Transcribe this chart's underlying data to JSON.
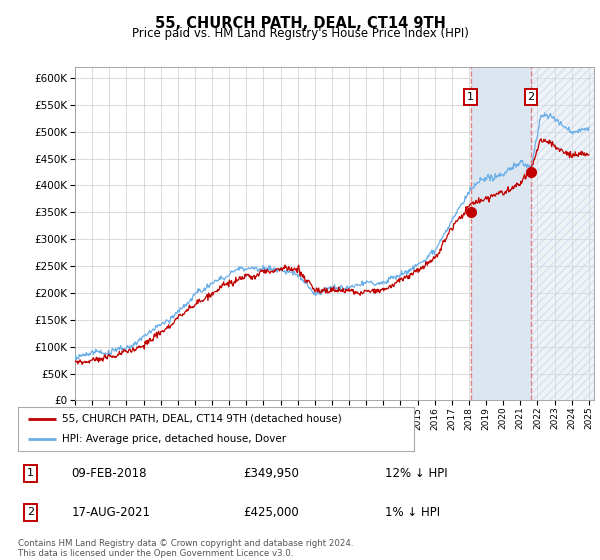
{
  "title": "55, CHURCH PATH, DEAL, CT14 9TH",
  "subtitle": "Price paid vs. HM Land Registry's House Price Index (HPI)",
  "ylim": [
    0,
    620000
  ],
  "ytick_vals": [
    0,
    50000,
    100000,
    150000,
    200000,
    250000,
    300000,
    350000,
    400000,
    450000,
    500000,
    550000,
    600000
  ],
  "xstart_year": 1995,
  "xend_year": 2025,
  "sale1_date": 2018.1,
  "sale1_price": 349950,
  "sale1_date_str": "09-FEB-2018",
  "sale1_hpi_pct": "12% ↓ HPI",
  "sale2_date": 2021.62,
  "sale2_price": 425000,
  "sale2_date_str": "17-AUG-2021",
  "sale2_hpi_pct": "1% ↓ HPI",
  "hpi_line_color": "#6aaee8",
  "price_line_color": "#c00000",
  "vline_color": "#e08080",
  "shade_color": "#dce6f1",
  "grid_color": "#cccccc",
  "background_color": "#ffffff",
  "legend_label1": "55, CHURCH PATH, DEAL, CT14 9TH (detached house)",
  "legend_label2": "HPI: Average price, detached house, Dover",
  "footer": "Contains HM Land Registry data © Crown copyright and database right 2024.\nThis data is licensed under the Open Government Licence v3.0."
}
